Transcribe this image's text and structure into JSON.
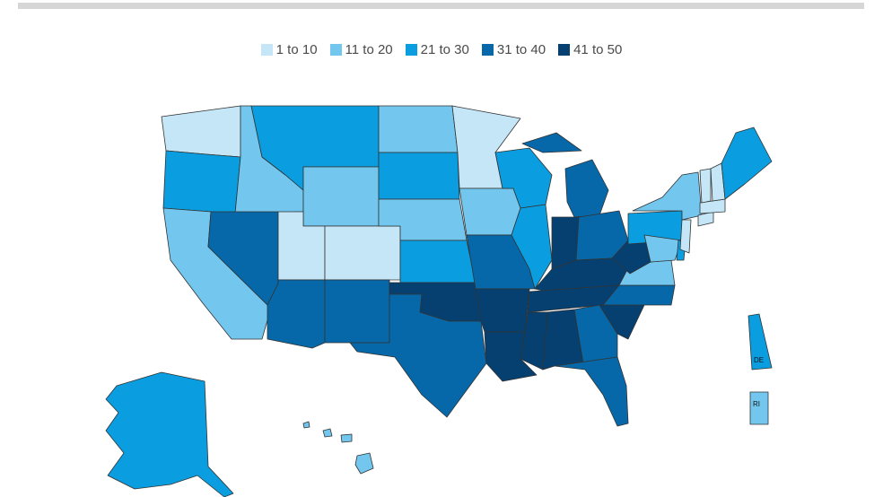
{
  "legend": [
    {
      "label": "1 to 10",
      "color": "#c4e6f7"
    },
    {
      "label": "11 to 20",
      "color": "#73c7ef"
    },
    {
      "label": "21 to 30",
      "color": "#0a9ee0"
    },
    {
      "label": "31 to 40",
      "color": "#0668a8"
    },
    {
      "label": "41  to 50",
      "color": "#054070"
    }
  ],
  "insets": {
    "de": "DE",
    "ri": "RI"
  }
}
